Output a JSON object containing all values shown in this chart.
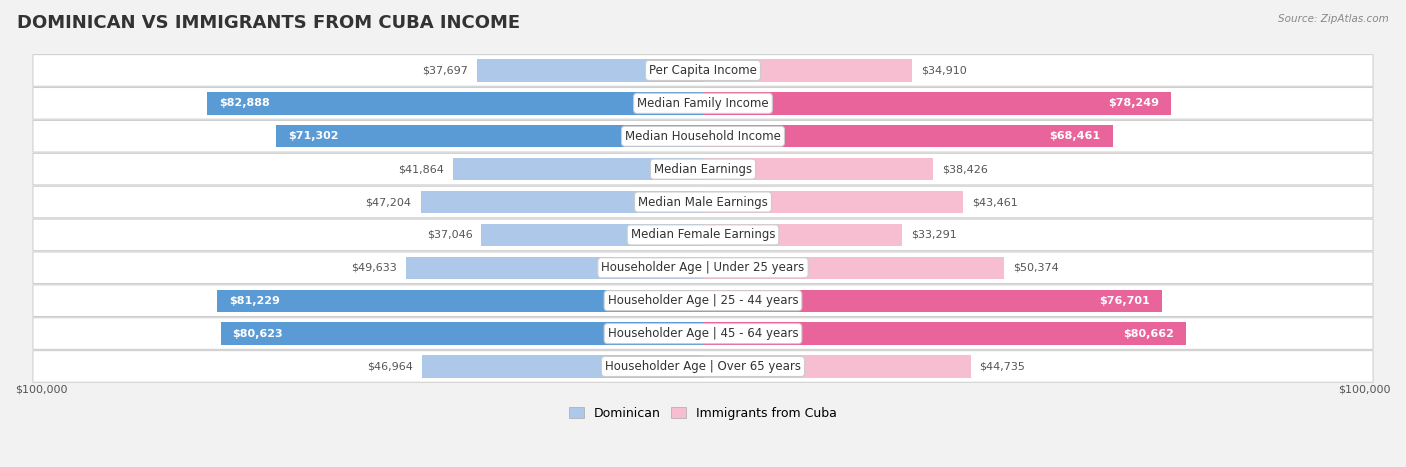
{
  "title": "DOMINICAN VS IMMIGRANTS FROM CUBA INCOME",
  "source": "Source: ZipAtlas.com",
  "categories": [
    "Per Capita Income",
    "Median Family Income",
    "Median Household Income",
    "Median Earnings",
    "Median Male Earnings",
    "Median Female Earnings",
    "Householder Age | Under 25 years",
    "Householder Age | 25 - 44 years",
    "Householder Age | 45 - 64 years",
    "Householder Age | Over 65 years"
  ],
  "dominican_values": [
    37697,
    82888,
    71302,
    41864,
    47204,
    37046,
    49633,
    81229,
    80623,
    46964
  ],
  "cuba_values": [
    34910,
    78249,
    68461,
    38426,
    43461,
    33291,
    50374,
    76701,
    80662,
    44735
  ],
  "dominican_color_light": "#adc8e8",
  "dominican_color_dark": "#5b9bd5",
  "cuba_color_light": "#f7bdd0",
  "cuba_color_dark": "#e8649a",
  "dominican_label": "Dominican",
  "cuba_label": "Immigrants from Cuba",
  "x_max": 100000,
  "x_label_left": "$100,000",
  "x_label_right": "$100,000",
  "background_color": "#f2f2f2",
  "row_bg_color": "#ffffff",
  "title_fontsize": 13,
  "label_fontsize": 8.5,
  "value_fontsize": 8,
  "legend_fontsize": 9,
  "inside_threshold": 60000
}
